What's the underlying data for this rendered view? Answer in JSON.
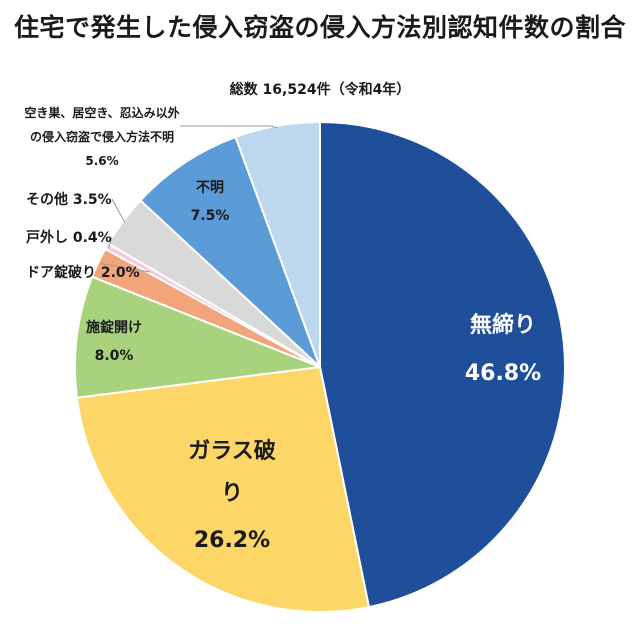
{
  "title": "住宅で発生した侵入窃盗の侵入方法別認知件数の割合",
  "subtitle": "総数 16,524件（令和4年）",
  "chart_data": {
    "type": "pie",
    "slices": [
      {
        "label": "無締り",
        "value": 46.8,
        "value_text": "46.8%",
        "color": "#1f4e9b"
      },
      {
        "label": "ガラス破り",
        "value": 26.2,
        "value_text": "26.2%",
        "color": "#fcd666"
      },
      {
        "label": "施錠開け",
        "value": 8.0,
        "value_text": "8.0%",
        "color": "#a8d37c"
      },
      {
        "label": "ドア錠破り",
        "value": 2.0,
        "value_text": "2.0%",
        "color": "#f2a47a"
      },
      {
        "label": "戸外し",
        "value": 0.4,
        "value_text": "0.4%",
        "color": "#f7c9e0"
      },
      {
        "label": "その他",
        "value": 3.5,
        "value_text": "3.5%",
        "color": "#d9d9d9"
      },
      {
        "label": "不明",
        "value": 7.5,
        "value_text": "7.5%",
        "color": "#5b9bd8"
      },
      {
        "label": "空き巣、居空き、忍込み以外の侵入窃盗で侵入方法不明",
        "value": 5.6,
        "value_text": "5.6%",
        "color": "#bdd7ee"
      }
    ]
  }
}
